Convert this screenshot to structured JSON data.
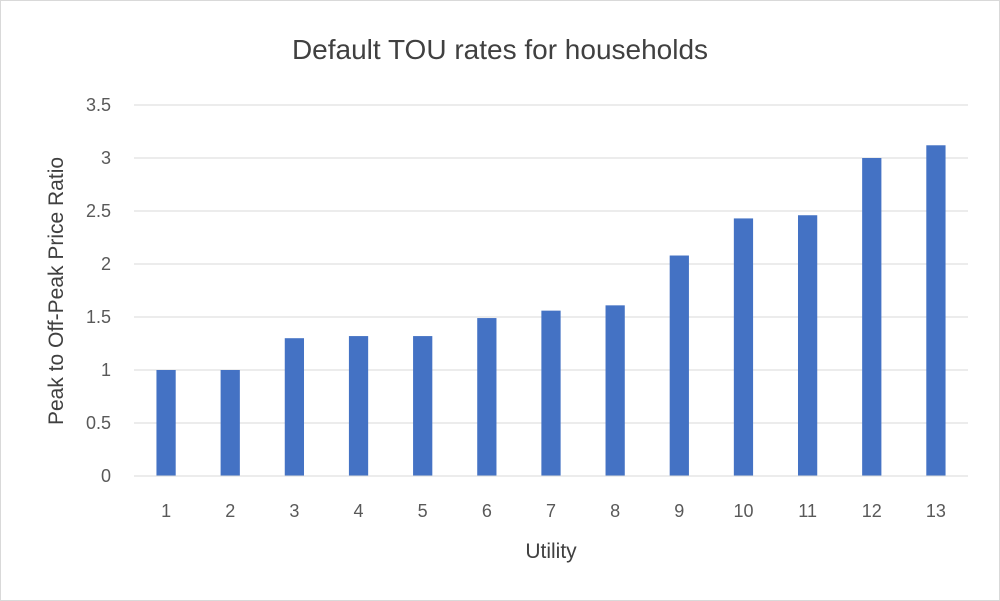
{
  "chart_data": {
    "type": "bar",
    "title": "Default TOU rates for households",
    "xlabel": "Utility",
    "ylabel": "Peak to Off-Peak Price Ratio",
    "categories": [
      "1",
      "2",
      "3",
      "4",
      "5",
      "6",
      "7",
      "8",
      "9",
      "10",
      "11",
      "12",
      "13"
    ],
    "values": [
      1.0,
      1.0,
      1.3,
      1.32,
      1.32,
      1.49,
      1.56,
      1.61,
      2.08,
      2.43,
      2.46,
      3.0,
      3.12
    ],
    "ylim": [
      0,
      3.5
    ],
    "yticks": [
      "0",
      "0.5",
      "1",
      "1.5",
      "2",
      "2.5",
      "3",
      "3.5"
    ],
    "grid": true,
    "legend": "none",
    "colors": {
      "bar": "#4472c4",
      "grid": "#d9d9d9",
      "axis": "#d9d9d9"
    }
  }
}
